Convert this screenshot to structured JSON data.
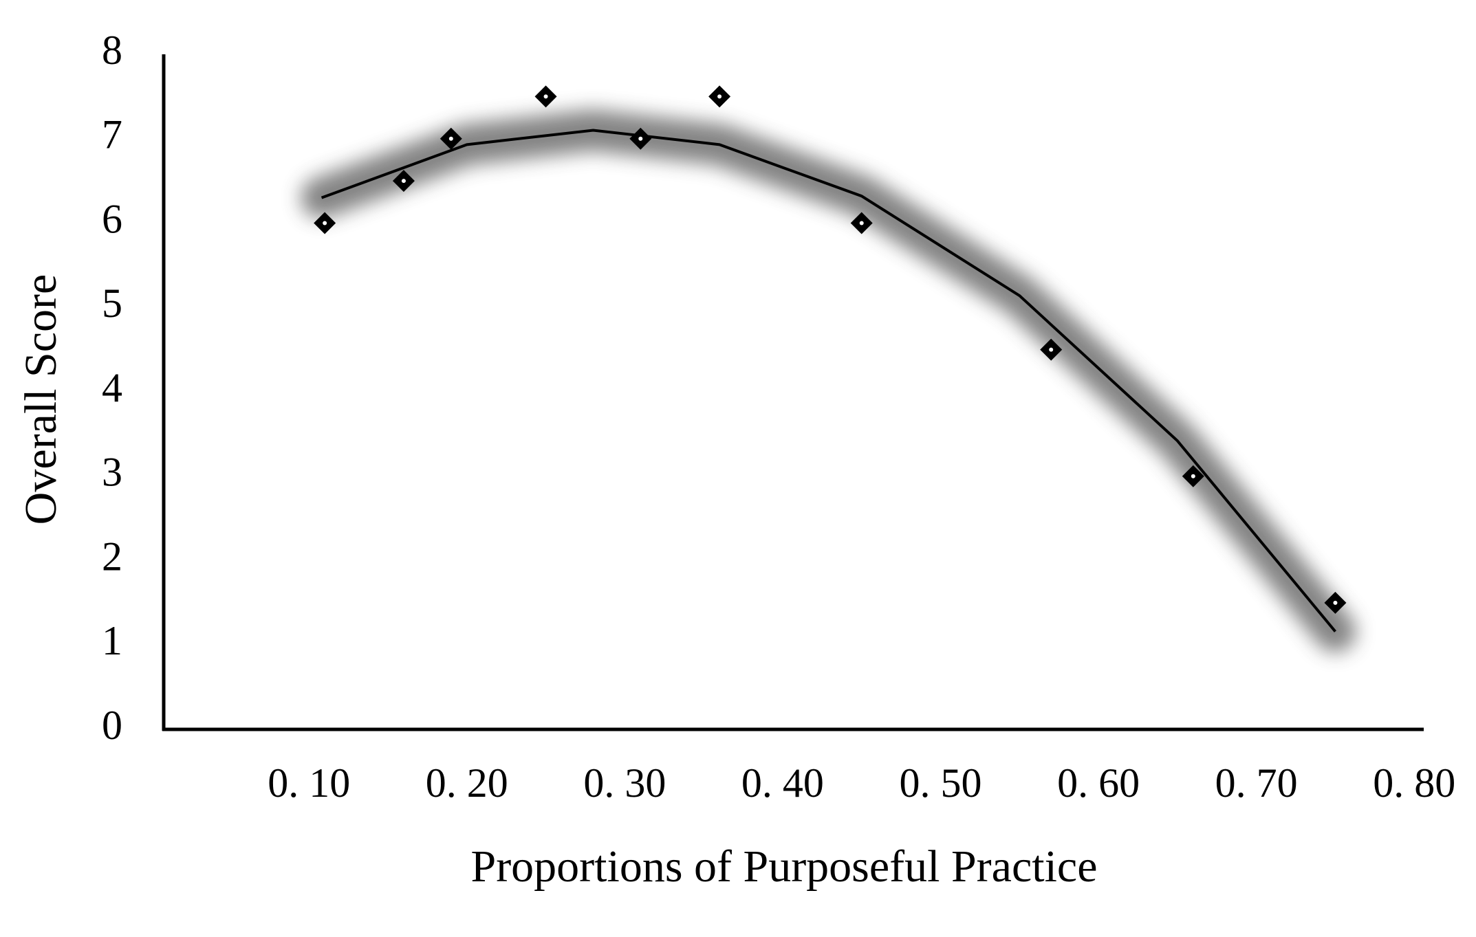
{
  "chart_data": {
    "type": "scatter",
    "x_label": "Proportions of Purposeful Practice",
    "y_label": "Overall Score",
    "series": [
      {
        "color": "#000000",
        "x": [
          0.11,
          0.16,
          0.19,
          0.25,
          0.31,
          0.36,
          0.45,
          0.57,
          0.66,
          0.75
        ],
        "values": [
          6,
          6.5,
          7,
          7.5,
          7,
          7.5,
          6,
          4.5,
          3,
          1.5
        ]
      }
    ],
    "trendline": {
      "color": "#000000",
      "x": [
        0.108,
        0.2,
        0.28,
        0.36,
        0.45,
        0.55,
        0.65,
        0.75
      ],
      "values": [
        6.3,
        6.93,
        7.1,
        6.93,
        6.32,
        5.14,
        3.42,
        1.16
      ]
    },
    "xlim": [
      0.008,
      0.806
    ],
    "xticks": [
      {
        "value": 0.1,
        "label": "0. 10"
      },
      {
        "value": 0.2,
        "label": "0. 20"
      },
      {
        "value": 0.3,
        "label": "0. 30"
      },
      {
        "value": 0.4,
        "label": "0. 40"
      },
      {
        "value": 0.5,
        "label": "0. 50"
      },
      {
        "value": 0.6,
        "label": "0. 60"
      },
      {
        "value": 0.7,
        "label": "0. 70"
      },
      {
        "value": 0.8,
        "label": "0. 80"
      }
    ],
    "ylim": [
      0,
      8
    ],
    "yticks": [
      0,
      1,
      2,
      3,
      4,
      5,
      6,
      7,
      8
    ],
    "grid": false
  }
}
